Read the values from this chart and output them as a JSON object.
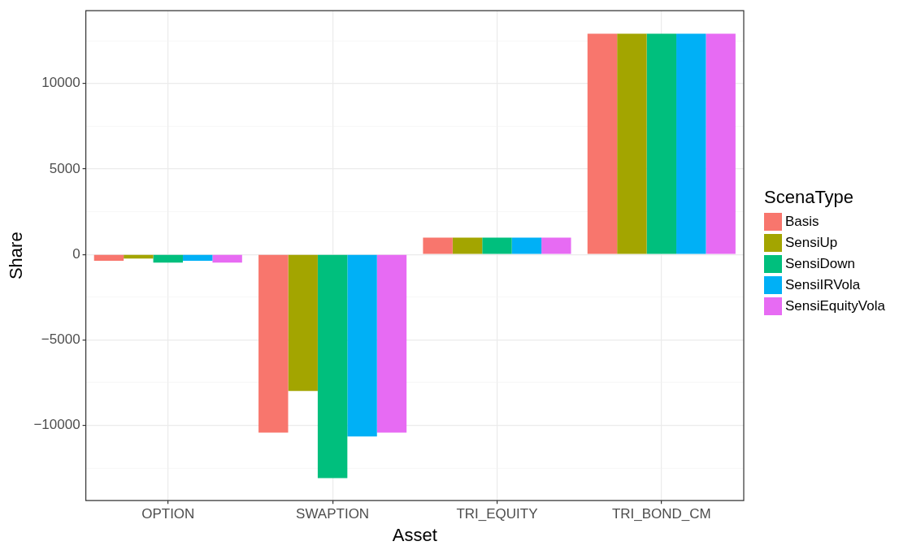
{
  "chart_data": {
    "type": "bar",
    "xlabel": "Asset",
    "ylabel": "Share",
    "legend_title": "ScenaType",
    "legend": "right",
    "grid": true,
    "categories": [
      "OPTION",
      "SWAPTION",
      "TRI_EQUITY",
      "TRI_BOND_CM"
    ],
    "ylim": [
      -14400,
      14250
    ],
    "yticks": [
      {
        "value": -12500,
        "label": null
      },
      {
        "value": -10000,
        "label": "−10000"
      },
      {
        "value": -7500,
        "label": null
      },
      {
        "value": -5000,
        "label": "−5000"
      },
      {
        "value": -2500,
        "label": null
      },
      0,
      {
        "value": 2500,
        "label": null
      },
      5000,
      {
        "value": 7500,
        "label": null
      },
      10000,
      {
        "value": 12500,
        "label": null
      }
    ],
    "series": [
      {
        "name": "Basis",
        "color": "#f8766d",
        "values": [
          -380,
          -10420,
          980,
          12900
        ]
      },
      {
        "name": "SensiUp",
        "color": "#a3a500",
        "values": [
          -240,
          -7990,
          980,
          12900
        ]
      },
      {
        "name": "SensiDown",
        "color": "#00bf7d",
        "values": [
          -480,
          -13080,
          980,
          12900
        ]
      },
      {
        "name": "SensiIRVola",
        "color": "#00b0f6",
        "values": [
          -370,
          -10650,
          980,
          12900
        ]
      },
      {
        "name": "SensiEquityVola",
        "color": "#e76bf3",
        "values": [
          -480,
          -10420,
          980,
          12900
        ]
      }
    ]
  }
}
